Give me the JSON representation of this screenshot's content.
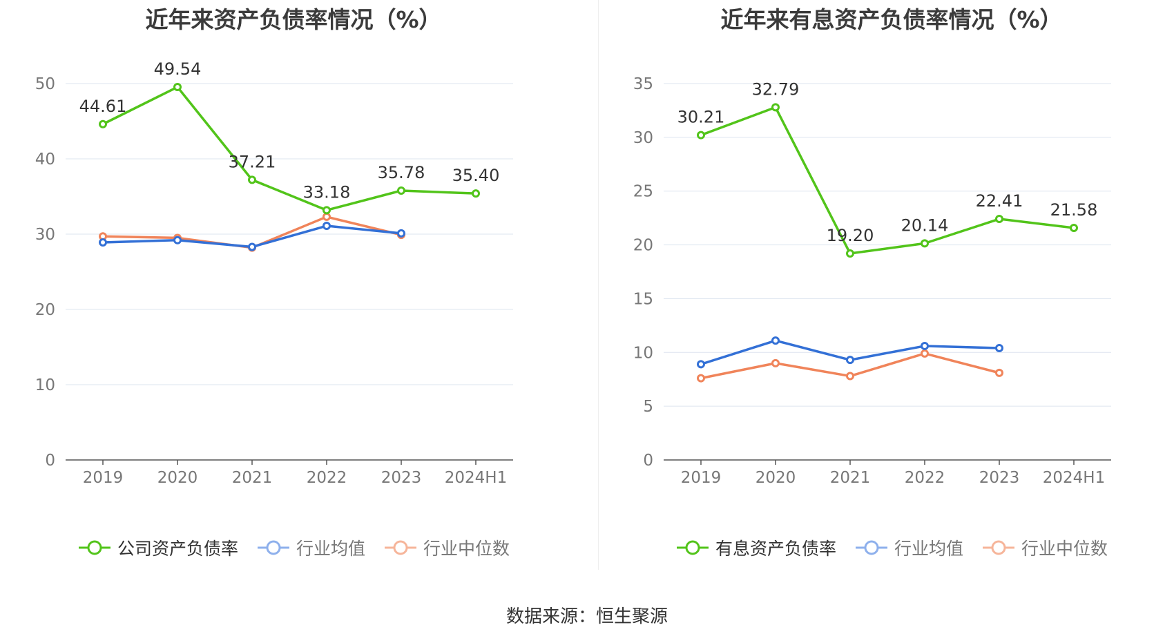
{
  "source": "数据来源：恒生聚源",
  "chart_data": [
    {
      "type": "line",
      "title": "近年来资产负债率情况（%）",
      "categories": [
        "2019",
        "2020",
        "2021",
        "2022",
        "2023",
        "2024H1"
      ],
      "ylim": [
        0,
        50
      ],
      "yticks": [
        0,
        10,
        20,
        30,
        40,
        50
      ],
      "grid": true,
      "legend_position": "bottom",
      "series": [
        {
          "name": "公司资产负债率",
          "color": "#52c41a",
          "values": [
            44.61,
            49.54,
            37.21,
            33.18,
            35.78,
            35.4
          ],
          "labels": [
            "44.61",
            "49.54",
            "37.21",
            "33.18",
            "35.78",
            "35.40"
          ]
        },
        {
          "name": "行业均值",
          "color": "#3370d6",
          "values": [
            28.9,
            29.2,
            28.3,
            31.1,
            30.1,
            null
          ]
        },
        {
          "name": "行业中位数",
          "color": "#f0845a",
          "values": [
            29.7,
            29.5,
            28.2,
            32.3,
            29.9,
            null
          ]
        }
      ]
    },
    {
      "type": "line",
      "title": "近年来有息资产负债率情况（%）",
      "categories": [
        "2019",
        "2020",
        "2021",
        "2022",
        "2023",
        "2024H1"
      ],
      "ylim": [
        0,
        35
      ],
      "yticks": [
        0,
        5,
        10,
        15,
        20,
        25,
        30,
        35
      ],
      "grid": true,
      "legend_position": "bottom",
      "series": [
        {
          "name": "有息资产负债率",
          "color": "#52c41a",
          "values": [
            30.21,
            32.79,
            19.2,
            20.14,
            22.41,
            21.58
          ],
          "labels": [
            "30.21",
            "32.79",
            "19.20",
            "20.14",
            "22.41",
            "21.58"
          ]
        },
        {
          "name": "行业均值",
          "color": "#3370d6",
          "values": [
            8.9,
            11.1,
            9.3,
            10.6,
            10.4,
            null
          ]
        },
        {
          "name": "行业中位数",
          "color": "#f0845a",
          "values": [
            7.6,
            9.0,
            7.8,
            9.9,
            8.1,
            null
          ]
        }
      ]
    }
  ]
}
